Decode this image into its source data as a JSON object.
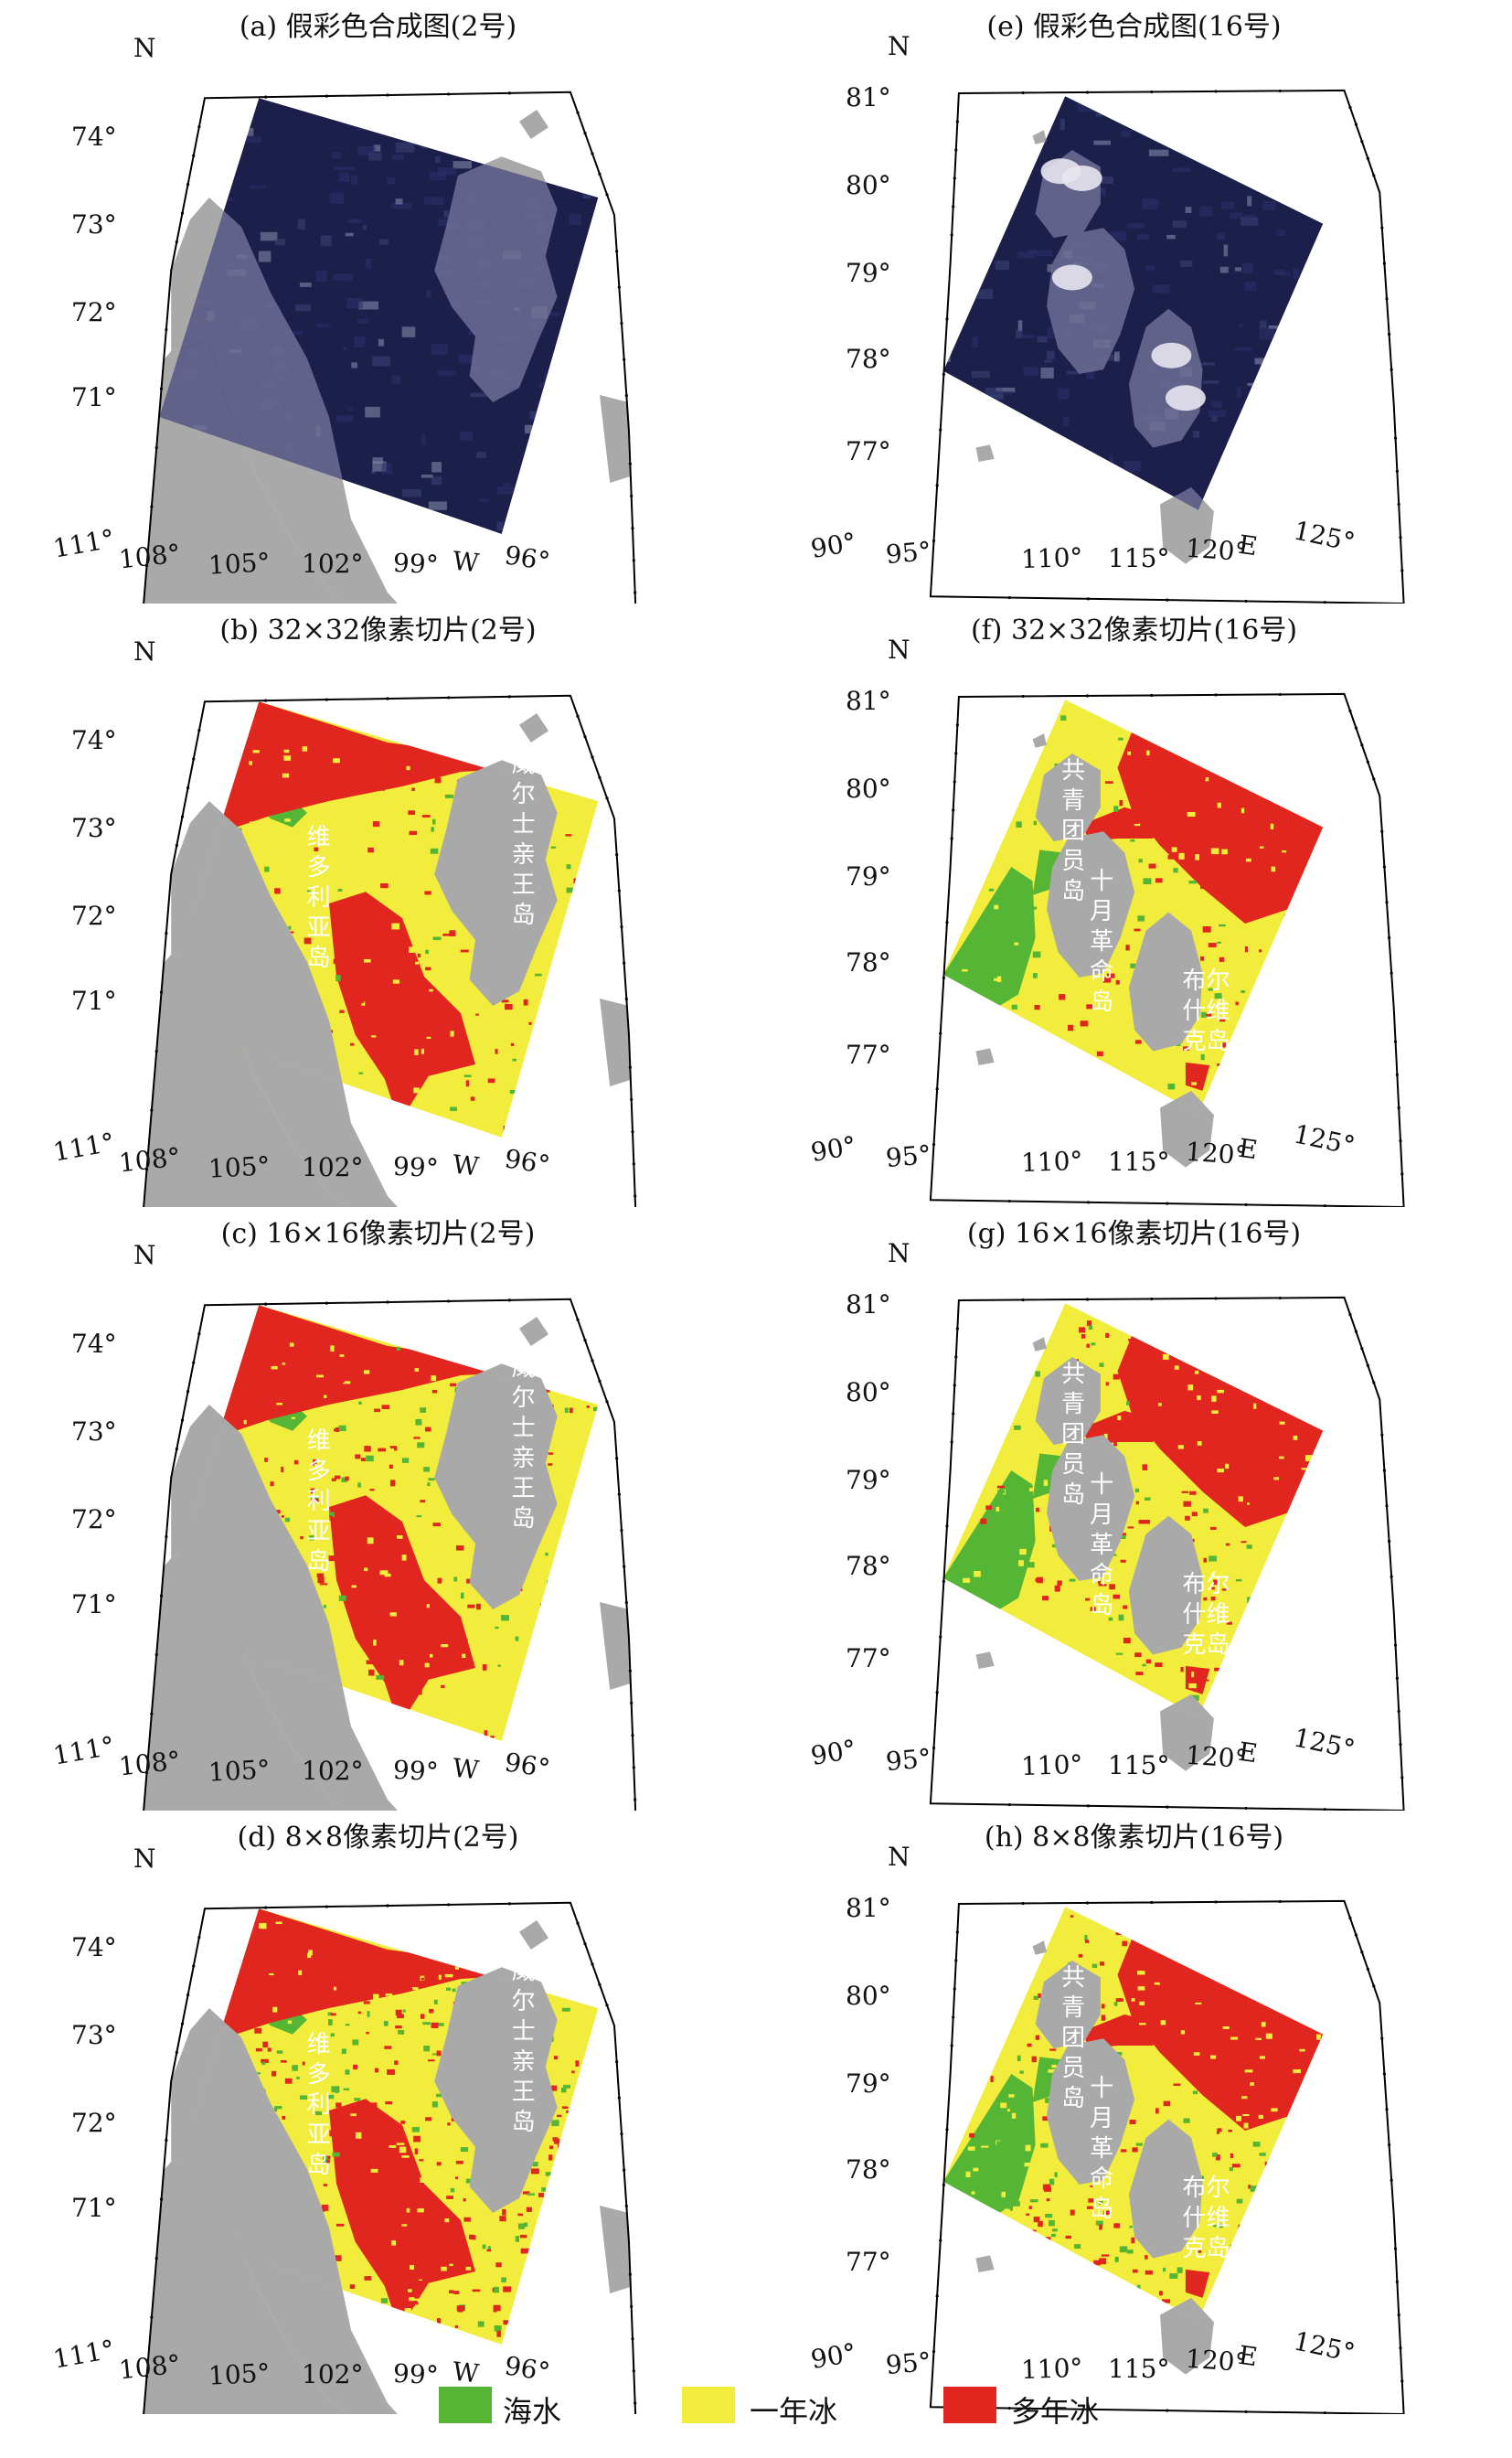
{
  "colors": {
    "land": "#a9a9a9",
    "sea_water": "#55b534",
    "first_year_ice": "#f2ed3c",
    "multi_year_ice": "#e0261e",
    "satellite_dark": "#1c1f4a",
    "frame": "#000000"
  },
  "panels": [
    {
      "id": "a",
      "title": "(a) 假彩色合成图(2号)",
      "kind": "false-color",
      "region": "canadian-arctic",
      "lat_labels": [
        "74°",
        "73°",
        "72°",
        "71°"
      ],
      "lon_labels": [
        "111°",
        "108°",
        "105°",
        "102°",
        "99°",
        "W",
        "96°"
      ],
      "north": "N",
      "islands": []
    },
    {
      "id": "e",
      "title": "(e) 假彩色合成图(16号)",
      "kind": "false-color",
      "region": "severnaya-zemlya",
      "lat_labels": [
        "81°",
        "80°",
        "79°",
        "78°",
        "77°"
      ],
      "lon_labels": [
        "90°",
        "95°",
        "110°",
        "115°",
        "120°",
        "E",
        "125°"
      ],
      "north": "N",
      "islands": []
    },
    {
      "id": "b",
      "title": "(b) 32×32像素切片(2号)",
      "kind": "classified",
      "region": "canadian-arctic",
      "lat_labels": [
        "74°",
        "73°",
        "72°",
        "71°"
      ],
      "lon_labels": [
        "111°",
        "108°",
        "105°",
        "102°",
        "99°",
        "W",
        "96°"
      ],
      "north": "N",
      "islands": [
        "维多利亚岛",
        "威尔士亲王岛"
      ]
    },
    {
      "id": "f",
      "title": "(f) 32×32像素切片(16号)",
      "kind": "classified",
      "region": "severnaya-zemlya",
      "lat_labels": [
        "81°",
        "80°",
        "79°",
        "78°",
        "77°"
      ],
      "lon_labels": [
        "90°",
        "95°",
        "110°",
        "115°",
        "120°",
        "E",
        "125°"
      ],
      "north": "N",
      "islands": [
        "共青团员岛",
        "十月革命岛",
        "布尔什维克岛"
      ]
    },
    {
      "id": "c",
      "title": "(c) 16×16像素切片(2号)",
      "kind": "classified",
      "region": "canadian-arctic",
      "lat_labels": [
        "74°",
        "73°",
        "72°",
        "71°"
      ],
      "lon_labels": [
        "111°",
        "108°",
        "105°",
        "102°",
        "99°",
        "W",
        "96°"
      ],
      "north": "N",
      "islands": [
        "维多利亚岛",
        "威尔士亲王岛"
      ]
    },
    {
      "id": "g",
      "title": "(g) 16×16像素切片(16号)",
      "kind": "classified",
      "region": "severnaya-zemlya",
      "lat_labels": [
        "81°",
        "80°",
        "79°",
        "78°",
        "77°"
      ],
      "lon_labels": [
        "90°",
        "95°",
        "110°",
        "115°",
        "120°",
        "E",
        "125°"
      ],
      "north": "N",
      "islands": [
        "共青团员岛",
        "十月革命岛",
        "布尔什维克岛"
      ]
    },
    {
      "id": "d",
      "title": "(d) 8×8像素切片(2号)",
      "kind": "classified",
      "region": "canadian-arctic",
      "lat_labels": [
        "74°",
        "73°",
        "72°",
        "71°"
      ],
      "lon_labels": [
        "111°",
        "108°",
        "105°",
        "102°",
        "99°",
        "W",
        "96°"
      ],
      "north": "N",
      "islands": [
        "维多利亚岛",
        "威尔士亲王岛"
      ]
    },
    {
      "id": "h",
      "title": "(h) 8×8像素切片(16号)",
      "kind": "classified",
      "region": "severnaya-zemlya",
      "lat_labels": [
        "81°",
        "80°",
        "79°",
        "78°",
        "77°"
      ],
      "lon_labels": [
        "90°",
        "95°",
        "110°",
        "115°",
        "120°",
        "E",
        "125°"
      ],
      "north": "N",
      "islands": [
        "共青团员岛",
        "十月革命岛",
        "布尔什维克岛"
      ]
    }
  ],
  "legend": [
    {
      "label": "海水",
      "color_key": "sea_water"
    },
    {
      "label": "一年冰",
      "color_key": "first_year_ice"
    },
    {
      "label": "多年冰",
      "color_key": "multi_year_ice"
    }
  ]
}
